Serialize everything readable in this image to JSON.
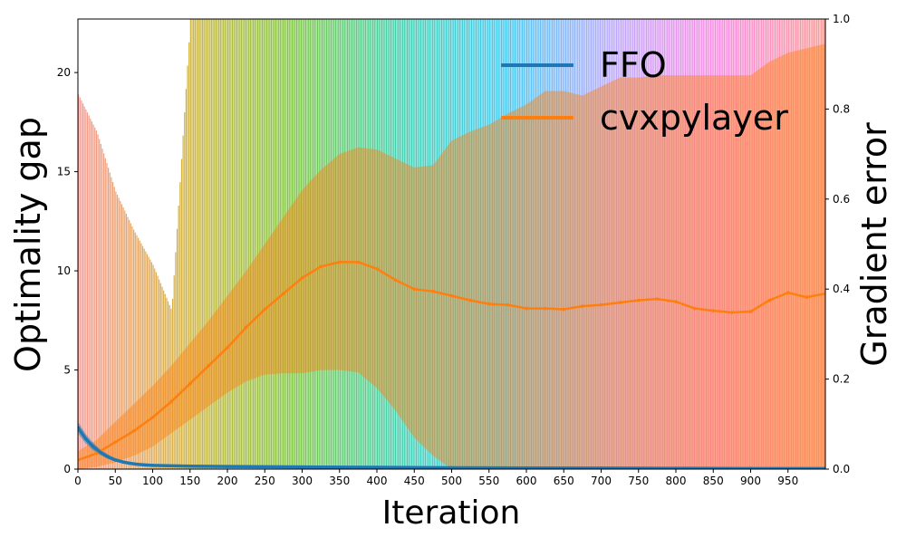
{
  "chart_data": {
    "type": "line",
    "title": "",
    "xlabel": "Iteration",
    "ylabel": "Optimality gap",
    "y2label": "Gradient error",
    "xlim": [
      0,
      1000
    ],
    "ylim": [
      0,
      22.7
    ],
    "y2lim": [
      0,
      1.0
    ],
    "x_ticks": [
      0,
      50,
      100,
      150,
      200,
      250,
      300,
      350,
      400,
      450,
      500,
      550,
      600,
      650,
      700,
      750,
      800,
      850,
      900,
      950
    ],
    "y_ticks": [
      0,
      5,
      10,
      15,
      20
    ],
    "y2_ticks": [
      "0.0",
      "0.2",
      "0.4",
      "0.6",
      "0.8",
      "1.0"
    ],
    "legend": {
      "placement": "top-right"
    },
    "grid": false,
    "background_bars": {
      "description_axis": "left",
      "x": [
        0,
        25,
        50,
        75,
        100,
        125,
        150,
        175,
        200,
        250,
        300,
        350,
        400,
        450,
        500,
        550,
        600,
        650,
        700,
        750,
        800,
        850,
        900,
        950,
        1000
      ],
      "heights": [
        18.9,
        17.0,
        14.0,
        12.0,
        10.3,
        8.0,
        22.7,
        22.7,
        22.7,
        22.7,
        22.7,
        22.7,
        22.7,
        22.7,
        22.7,
        22.7,
        22.7,
        22.7,
        22.7,
        22.7,
        22.7,
        22.7,
        22.7,
        22.7,
        22.7
      ],
      "hue_sequence": [
        "#f8766d",
        "#c49a00",
        "#53b400",
        "#00c094",
        "#00b6eb",
        "#a58aff",
        "#fb61d7",
        "#f8766d"
      ]
    },
    "series": [
      {
        "name": "FFO",
        "axis": "left",
        "color": "#1f77b4",
        "x": [
          0,
          10,
          20,
          30,
          40,
          50,
          60,
          70,
          80,
          90,
          100,
          120,
          150,
          200,
          300,
          400,
          500,
          600,
          700,
          800,
          900,
          1000
        ],
        "values": [
          2.1,
          1.55,
          1.15,
          0.85,
          0.62,
          0.46,
          0.36,
          0.29,
          0.24,
          0.21,
          0.19,
          0.17,
          0.15,
          0.13,
          0.11,
          0.09,
          0.07,
          0.06,
          0.05,
          0.04,
          0.03,
          0.03
        ],
        "band_lower": [
          1.8,
          1.3,
          0.95,
          0.7,
          0.52,
          0.38,
          0.3,
          0.24,
          0.2,
          0.18,
          0.16,
          0.14,
          0.12,
          0.1,
          0.08,
          0.06,
          0.05,
          0.04,
          0.03,
          0.02,
          0.02,
          0.02
        ],
        "band_upper": [
          2.4,
          1.8,
          1.35,
          1.0,
          0.75,
          0.56,
          0.44,
          0.36,
          0.3,
          0.26,
          0.23,
          0.21,
          0.19,
          0.17,
          0.14,
          0.12,
          0.1,
          0.08,
          0.07,
          0.06,
          0.05,
          0.05
        ]
      },
      {
        "name": "cvxpylayer",
        "axis": "right",
        "color": "#ff7f0e",
        "x": [
          0,
          25,
          50,
          75,
          100,
          125,
          150,
          175,
          200,
          225,
          250,
          275,
          300,
          325,
          350,
          375,
          400,
          425,
          450,
          475,
          500,
          525,
          550,
          575,
          600,
          625,
          650,
          675,
          700,
          725,
          750,
          775,
          800,
          825,
          850,
          875,
          900,
          925,
          950,
          975,
          1000
        ],
        "values": [
          0.02,
          0.035,
          0.06,
          0.085,
          0.115,
          0.15,
          0.19,
          0.23,
          0.27,
          0.315,
          0.355,
          0.39,
          0.425,
          0.45,
          0.46,
          0.46,
          0.445,
          0.42,
          0.4,
          0.395,
          0.385,
          0.375,
          0.367,
          0.365,
          0.357,
          0.357,
          0.355,
          0.362,
          0.365,
          0.37,
          0.375,
          0.378,
          0.372,
          0.357,
          0.352,
          0.348,
          0.35,
          0.375,
          0.392,
          0.382,
          0.39
        ],
        "band_lower": [
          0.0,
          0.005,
          0.015,
          0.03,
          0.05,
          0.08,
          0.11,
          0.14,
          0.17,
          0.195,
          0.21,
          0.213,
          0.213,
          0.22,
          0.22,
          0.215,
          0.18,
          0.13,
          0.07,
          0.03,
          0.0,
          0.0,
          0.0,
          0.0,
          0.0,
          0.0,
          0.0,
          0.0,
          0.0,
          0.0,
          0.0,
          0.0,
          0.0,
          0.0,
          0.0,
          0.0,
          0.0,
          0.0,
          0.0,
          0.0,
          0.0
        ],
        "band_upper": [
          0.04,
          0.065,
          0.105,
          0.145,
          0.185,
          0.23,
          0.28,
          0.33,
          0.385,
          0.44,
          0.5,
          0.56,
          0.62,
          0.665,
          0.7,
          0.715,
          0.71,
          0.69,
          0.67,
          0.675,
          0.73,
          0.75,
          0.765,
          0.79,
          0.81,
          0.84,
          0.84,
          0.83,
          0.85,
          0.87,
          0.87,
          0.875,
          0.875,
          0.875,
          0.875,
          0.875,
          0.875,
          0.905,
          0.925,
          0.935,
          0.945
        ]
      }
    ]
  }
}
